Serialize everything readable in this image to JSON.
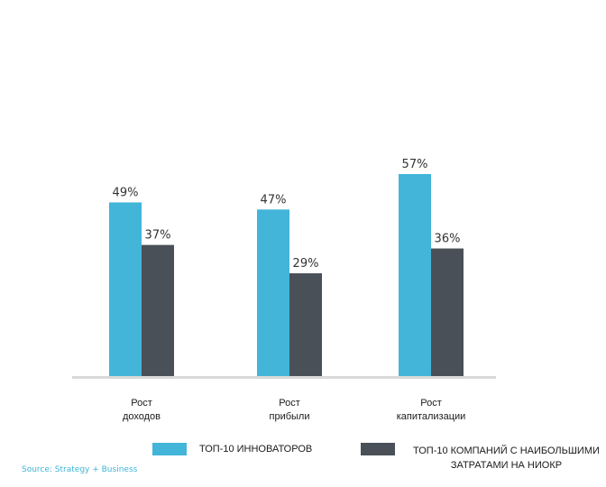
{
  "chart_data": {
    "type": "bar",
    "title": "",
    "xlabel": "",
    "ylabel": "",
    "ylim": [
      0,
      60
    ],
    "categories": [
      [
        "Рост",
        "доходов"
      ],
      [
        "Рост",
        "прибыли"
      ],
      [
        "Рост",
        "капитализации"
      ]
    ],
    "series": [
      {
        "name": "ТОП-10 ИННОВАТОРОВ",
        "color": "#42b5d9",
        "values": [
          49,
          47,
          57
        ],
        "labels": [
          "49%",
          "47%",
          "57%"
        ]
      },
      {
        "name": "ТОП-10 КОМПАНИЙ С НАИБОЛЬШИМИ ЗАТРАТАМИ НА НИОКР",
        "color": "#4a5058",
        "values": [
          37,
          29,
          36
        ],
        "labels": [
          "37%",
          "29%",
          "36%"
        ]
      }
    ],
    "axis_color": "#d9d9d9"
  },
  "legend": {
    "item1": "ТОП-10 ИННОВАТОРОВ",
    "item2_line1": "ТОП-10 КОМПАНИЙ С НАИБОЛЬШИМИ",
    "item2_line2": "ЗАТРАТАМИ НА НИОКР"
  },
  "source": "Source: Strategy + Business"
}
